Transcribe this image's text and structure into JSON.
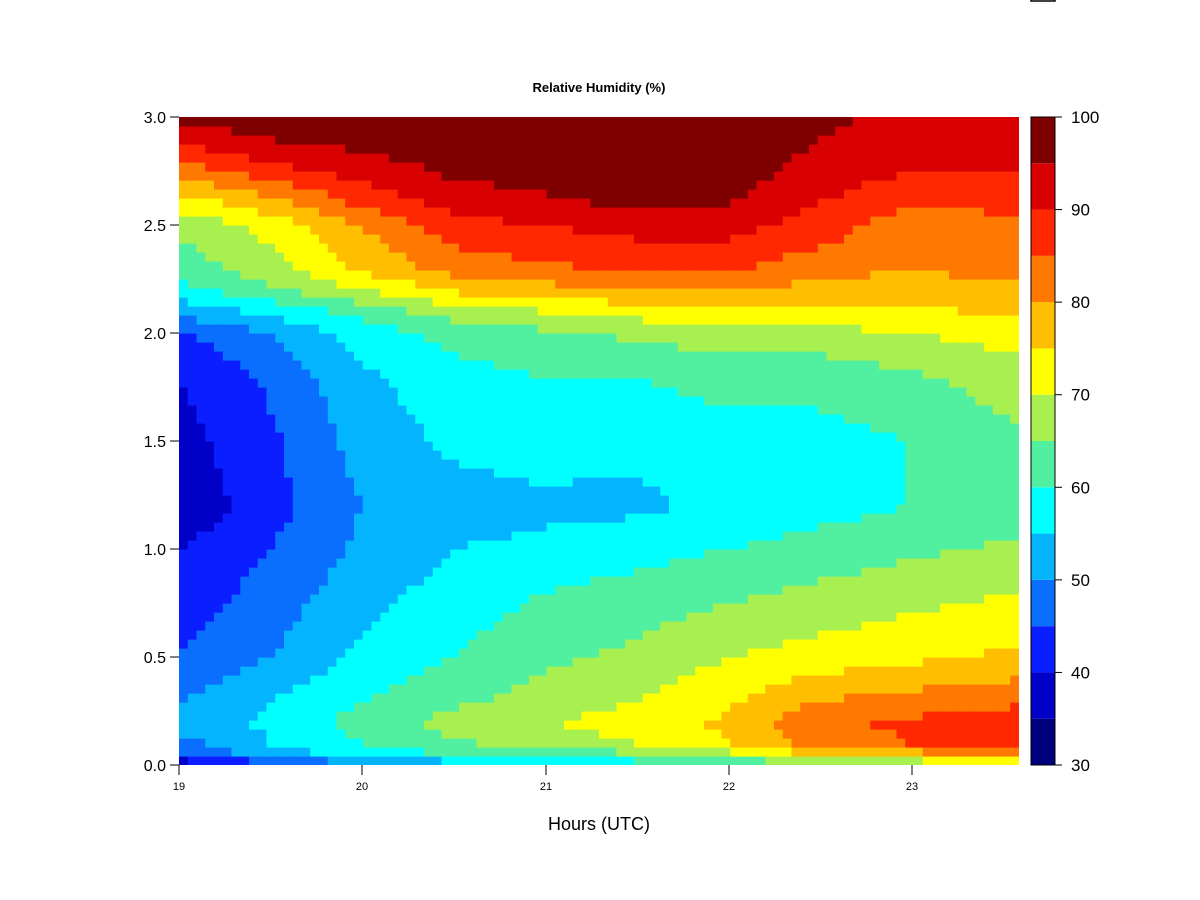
{
  "chart_data": {
    "type": "heatmap",
    "title": "Relative Humidity (%)",
    "xlabel": "Hours (UTC)",
    "ylabel": "",
    "xlim": [
      19,
      23.6
    ],
    "ylim": [
      0,
      3
    ],
    "x_ticks": [
      "19",
      "20",
      "21",
      "22",
      "23"
    ],
    "y_ticks": [
      "0.0",
      "0.5",
      "1.0",
      "1.5",
      "2.0",
      "2.5",
      "3.0"
    ],
    "colorbar": {
      "levels": [
        30,
        35,
        40,
        45,
        50,
        55,
        60,
        65,
        70,
        75,
        80,
        85,
        90,
        95,
        100
      ],
      "tick_labels": [
        "30",
        "40",
        "50",
        "60",
        "70",
        "80",
        "90",
        "100"
      ],
      "colors": [
        "#00007f",
        "#0000c8",
        "#0a1eff",
        "#0a6eff",
        "#05b4ff",
        "#00ffff",
        "#50f0a0",
        "#a8f050",
        "#ffff00",
        "#ffbe00",
        "#ff7800",
        "#ff2800",
        "#d80000",
        "#7f0000"
      ]
    },
    "heights": [
      0.0,
      0.05,
      0.1,
      0.2,
      0.3,
      0.5,
      0.8,
      1.0,
      1.2,
      1.5,
      1.8,
      2.0,
      2.1,
      2.2,
      2.3,
      2.5,
      2.6,
      2.75,
      2.9,
      3.0
    ],
    "times": [
      19.0,
      19.5,
      20.0,
      20.5,
      21.0,
      21.5,
      22.0,
      22.5,
      23.0,
      23.6
    ],
    "values": [
      [
        35,
        43,
        48,
        52,
        55,
        57,
        60,
        62,
        64,
        65
      ],
      [
        45,
        52,
        57,
        60,
        62,
        64,
        68,
        75,
        78,
        80
      ],
      [
        48,
        55,
        60,
        64,
        67,
        70,
        75,
        82,
        85,
        86
      ],
      [
        52,
        56,
        62,
        67,
        70,
        72,
        76,
        84,
        86,
        88
      ],
      [
        50,
        55,
        60,
        64,
        67,
        70,
        74,
        80,
        82,
        84
      ],
      [
        45,
        50,
        56,
        60,
        64,
        66,
        70,
        72,
        74,
        76
      ],
      [
        42,
        47,
        53,
        57,
        60,
        62,
        64,
        66,
        68,
        70
      ],
      [
        40,
        45,
        51,
        55,
        56,
        58,
        60,
        62,
        64,
        66
      ],
      [
        36,
        43,
        50,
        53,
        54,
        54,
        56,
        58,
        60,
        62
      ],
      [
        38,
        44,
        52,
        56,
        57,
        56,
        58,
        58,
        60,
        64
      ],
      [
        40,
        46,
        54,
        58,
        60,
        60,
        62,
        62,
        64,
        68
      ],
      [
        44,
        50,
        57,
        62,
        64,
        66,
        68,
        68,
        70,
        72
      ],
      [
        52,
        56,
        62,
        67,
        70,
        72,
        74,
        74,
        74,
        76
      ],
      [
        58,
        64,
        70,
        76,
        78,
        80,
        80,
        78,
        78,
        79
      ],
      [
        62,
        68,
        76,
        82,
        84,
        86,
        86,
        82,
        80,
        82
      ],
      [
        66,
        72,
        80,
        88,
        90,
        92,
        92,
        88,
        82,
        84
      ],
      [
        72,
        78,
        86,
        92,
        94,
        96,
        95,
        90,
        86,
        86
      ],
      [
        82,
        88,
        92,
        96,
        97,
        98,
        98,
        93,
        90,
        90
      ],
      [
        92,
        95,
        97,
        98,
        98,
        99,
        99,
        95,
        92,
        92
      ],
      [
        96,
        98,
        98,
        99,
        99,
        99,
        99,
        96,
        94,
        94
      ]
    ]
  }
}
